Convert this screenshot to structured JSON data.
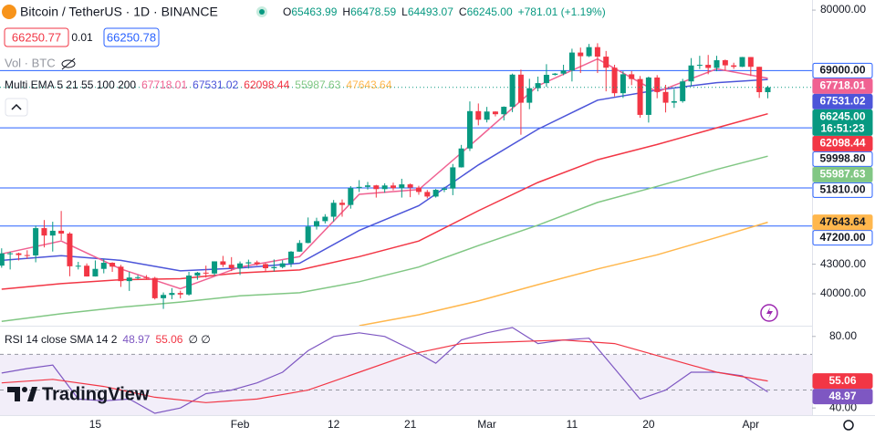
{
  "header": {
    "symbol": "Bitcoin / TetherUS · 1D · BINANCE",
    "ohlc": {
      "names": [
        "O",
        "H",
        "L",
        "C"
      ],
      "values": [
        65463.99,
        66478.59,
        64493.07,
        66245
      ],
      "value_labels": [
        "65463.99",
        "66478.59",
        "64493.07",
        "66245.00"
      ]
    },
    "change": "+781.01 (+1.19%)",
    "sell": 66250.77,
    "spread": 0.01,
    "buy": 66250.78,
    "volume": "Vol · BTC",
    "indicator": "Multi EMA 5 21 55 100 200"
  },
  "chart_data": [
    {
      "type": "candlestick",
      "log_scale": true,
      "up_color": "#089981",
      "down_color": "#f23645",
      "categories": [
        null,
        null,
        null,
        null,
        null,
        null,
        null,
        null,
        null,
        null,
        null,
        "15",
        null,
        null,
        null,
        null,
        null,
        null,
        null,
        null,
        null,
        null,
        null,
        null,
        null,
        null,
        null,
        null,
        "Feb",
        null,
        null,
        null,
        null,
        null,
        null,
        null,
        null,
        null,
        null,
        "12",
        null,
        null,
        null,
        null,
        null,
        null,
        null,
        null,
        "21",
        null,
        null,
        null,
        null,
        null,
        null,
        null,
        null,
        "Mar",
        null,
        null,
        null,
        null,
        null,
        null,
        null,
        null,
        null,
        "11",
        null,
        null,
        null,
        null,
        null,
        null,
        null,
        null,
        "20",
        null,
        null,
        null,
        null,
        null,
        null,
        null,
        null,
        null,
        null,
        null,
        "Apr",
        null,
        null
      ],
      "open": [
        42850,
        44150,
        44160,
        43970,
        43930,
        46960,
        46120,
        46660,
        46340,
        42780,
        42840,
        41730,
        42510,
        43150,
        42740,
        41260,
        41620,
        41660,
        41580,
        39570,
        39890,
        40080,
        39930,
        41820,
        42120,
        42030,
        43300,
        42940,
        42580,
        43080,
        43200,
        43010,
        42580,
        42700,
        43090,
        44340,
        45290,
        47150,
        47770,
        48290,
        49960,
        49700,
        51800,
        51940,
        52130,
        51660,
        52120,
        51780,
        52260,
        51850,
        51300,
        50730,
        51570,
        51730,
        54480,
        57050,
        62500,
        61200,
        62440,
        62030,
        63170,
        68330,
        63800,
        66100,
        66930,
        68300,
        68500,
        69020,
        72120,
        71480,
        73080,
        71400,
        69500,
        65300,
        68390,
        67600,
        61930,
        67850,
        65500,
        63800,
        64040,
        67210,
        69880,
        69990,
        69460,
        70780,
        69900,
        69650,
        71330,
        69650,
        65463.99
      ],
      "high": [
        44700,
        44330,
        44230,
        44490,
        47250,
        47900,
        47700,
        48970,
        46500,
        43250,
        43080,
        43400,
        43570,
        43200,
        42930,
        42200,
        41870,
        41870,
        41690,
        40130,
        40560,
        40300,
        42200,
        42200,
        42850,
        43300,
        43880,
        43750,
        43290,
        43480,
        43380,
        43120,
        43500,
        43420,
        44400,
        45600,
        48200,
        48170,
        48590,
        50300,
        50370,
        52040,
        52800,
        52570,
        52200,
        52400,
        52480,
        52980,
        52370,
        52080,
        51550,
        51680,
        51950,
        54930,
        57550,
        64000,
        63680,
        63150,
        62480,
        63230,
        68500,
        69170,
        67640,
        68000,
        70100,
        68600,
        70000,
        72800,
        73000,
        73650,
        73780,
        72400,
        70000,
        68900,
        68950,
        68100,
        68000,
        68250,
        66650,
        65970,
        67620,
        71150,
        71550,
        71700,
        71550,
        70900,
        70350,
        71350,
        71340,
        69650,
        66478.59
      ],
      "low": [
        42630,
        42450,
        43400,
        43580,
        43200,
        44800,
        44350,
        45600,
        41750,
        42450,
        41720,
        41720,
        42050,
        42200,
        40680,
        40280,
        41450,
        41500,
        39450,
        38550,
        39480,
        39550,
        39820,
        41400,
        41620,
        41800,
        42700,
        42280,
        41880,
        42550,
        42870,
        42230,
        42250,
        42570,
        42700,
        44330,
        45250,
        46800,
        47500,
        47700,
        48300,
        49250,
        51300,
        51600,
        50600,
        51200,
        51500,
        50600,
        50650,
        50950,
        50500,
        50600,
        51280,
        50900,
        54450,
        56700,
        60370,
        60800,
        61700,
        61100,
        62350,
        59000,
        62800,
        65600,
        66300,
        68180,
        68230,
        67200,
        68600,
        71330,
        68600,
        65600,
        64780,
        64550,
        66600,
        61500,
        60780,
        64500,
        62300,
        63000,
        63800,
        66400,
        69280,
        68400,
        68900,
        69000,
        69300,
        69600,
        68100,
        64550,
        64493.07
      ],
      "close": [
        44150,
        44160,
        43970,
        43930,
        46960,
        46120,
        46660,
        46340,
        42780,
        42840,
        41730,
        42510,
        43150,
        42740,
        41260,
        41620,
        41660,
        41580,
        39570,
        39890,
        40080,
        39930,
        41820,
        42120,
        42030,
        43300,
        42940,
        42580,
        43080,
        43200,
        43010,
        42580,
        42700,
        43090,
        44340,
        45290,
        47150,
        47770,
        48290,
        49960,
        49700,
        51800,
        51940,
        52130,
        51660,
        52120,
        51780,
        52260,
        51850,
        51300,
        50730,
        51570,
        51730,
        54480,
        57050,
        62500,
        61200,
        62440,
        62030,
        63170,
        68330,
        63800,
        66100,
        66930,
        68300,
        68500,
        69020,
        72120,
        71480,
        73080,
        71400,
        69500,
        65300,
        68390,
        67600,
        61930,
        67850,
        65500,
        63800,
        64040,
        67210,
        69880,
        69990,
        69460,
        70780,
        69900,
        69650,
        71330,
        69650,
        65463.99,
        66245
      ],
      "ylim": [
        37000,
        82000
      ],
      "yticks": [
        {
          "value": 80000,
          "label": "80000.00"
        },
        {
          "value": 43000,
          "label": "43000.00"
        },
        {
          "value": 40000,
          "label": "40000.00"
        }
      ],
      "series": [
        {
          "color": "#f06292",
          "text_color": "#ffffff",
          "x": [
            0,
            7,
            14,
            21,
            28,
            35,
            42,
            49,
            56,
            63,
            70,
            77,
            84,
            90
          ],
          "values": [
            44100,
            45500,
            42500,
            40500,
            42700,
            43800,
            51000,
            51600,
            58500,
            66500,
            71000,
            65500,
            69300,
            67718.01
          ]
        },
        {
          "color": "#4c55d9",
          "text_color": "#ffffff",
          "x": [
            0,
            7,
            14,
            21,
            28,
            35,
            42,
            49,
            56,
            63,
            70,
            77,
            84,
            90
          ],
          "values": [
            43400,
            43900,
            43400,
            42300,
            42600,
            43100,
            46700,
            49600,
            54800,
            59800,
            64200,
            65800,
            67000,
            67531.02
          ]
        },
        {
          "color": "#f23645",
          "text_color": "#ffffff",
          "x": [
            0,
            7,
            14,
            21,
            28,
            35,
            42,
            49,
            56,
            63,
            70,
            77,
            84,
            90
          ],
          "values": [
            40450,
            41000,
            41400,
            41500,
            42100,
            42400,
            43800,
            45500,
            49000,
            52500,
            55500,
            57600,
            60000,
            62098.44
          ]
        },
        {
          "color": "#81c784",
          "text_color": "#ffffff",
          "x": [
            0,
            7,
            14,
            21,
            28,
            35,
            42,
            49,
            56,
            63,
            70,
            77,
            84,
            90
          ],
          "values": [
            37400,
            38100,
            38700,
            39200,
            39800,
            40100,
            41200,
            42700,
            45000,
            47300,
            50000,
            52000,
            54200,
            55987.63
          ]
        },
        {
          "color": "#ffb74d",
          "text_color": "#131722",
          "x": [
            42,
            49,
            56,
            63,
            70,
            77,
            84,
            90
          ],
          "values": [
            37000,
            38000,
            39300,
            40900,
            42500,
            44000,
            45900,
            47643.64
          ]
        }
      ],
      "price_lines": [
        {
          "value": 69000,
          "label": "69000.00"
        },
        {
          "value": 59998.8,
          "label": "59998.80"
        },
        {
          "value": 51810,
          "label": "51810.00"
        },
        {
          "value": 47200,
          "label": "47200.00"
        }
      ],
      "price_line_color": "#2962ff",
      "last_price": {
        "value": 66245,
        "label": "66245.00"
      },
      "countdown": "16:51:23"
    },
    {
      "type": "line",
      "title": "RSI 14 close SMA 14 2",
      "extra": "∅ ∅",
      "ylim": [
        36,
        86
      ],
      "yticks": [
        {
          "value": 80,
          "label": "80.00"
        },
        {
          "value": 40,
          "label": "40.00"
        }
      ],
      "bands": {
        "upper": 70,
        "middle": 50,
        "lower": 30
      },
      "series": [
        {
          "color": "#7e57c2",
          "text_color": "#ffffff",
          "x": [
            0,
            3,
            6,
            9,
            12,
            15,
            18,
            21,
            24,
            27,
            30,
            33,
            36,
            39,
            42,
            45,
            48,
            51,
            54,
            57,
            60,
            63,
            66,
            69,
            72,
            75,
            78,
            81,
            84,
            87,
            90
          ],
          "values": [
            59.5,
            62,
            64,
            45,
            44,
            45,
            37,
            40,
            48,
            50,
            54,
            60,
            72,
            80,
            82,
            80,
            73,
            65,
            78,
            82,
            85,
            76,
            78,
            79,
            62,
            45,
            50,
            60,
            60,
            58,
            48.97
          ]
        },
        {
          "color": "#f23645",
          "text_color": "#ffffff",
          "x": [
            0,
            6,
            12,
            18,
            24,
            30,
            36,
            42,
            48,
            54,
            60,
            66,
            72,
            78,
            84,
            90
          ],
          "values": [
            54,
            56,
            52,
            46,
            43,
            45,
            50,
            60,
            70,
            76,
            77,
            78,
            76,
            68,
            60,
            55.06
          ]
        }
      ]
    }
  ],
  "watermark": "TradingView"
}
